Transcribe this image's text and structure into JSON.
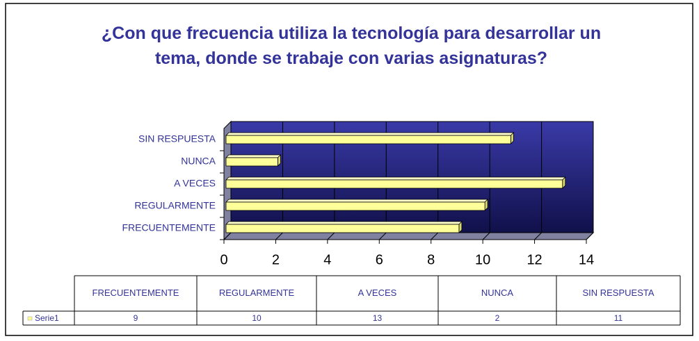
{
  "chart_data": {
    "type": "bar",
    "orientation": "horizontal",
    "title": "¿Con que frecuencia utiliza la tecnología para desarrollar un tema, donde se trabaje con varias asignaturas?",
    "categories": [
      "FRECUENTEMENTE",
      "REGULARMENTE",
      "A VECES",
      "NUNCA",
      "SIN RESPUESTA"
    ],
    "series": [
      {
        "name": "Serie1",
        "color": "#ffff99",
        "values": [
          9,
          10,
          13,
          2,
          11
        ]
      }
    ],
    "xlim": [
      0,
      14
    ],
    "xticks": [
      0,
      2,
      4,
      6,
      8,
      10,
      12,
      14
    ],
    "grid": true
  }
}
